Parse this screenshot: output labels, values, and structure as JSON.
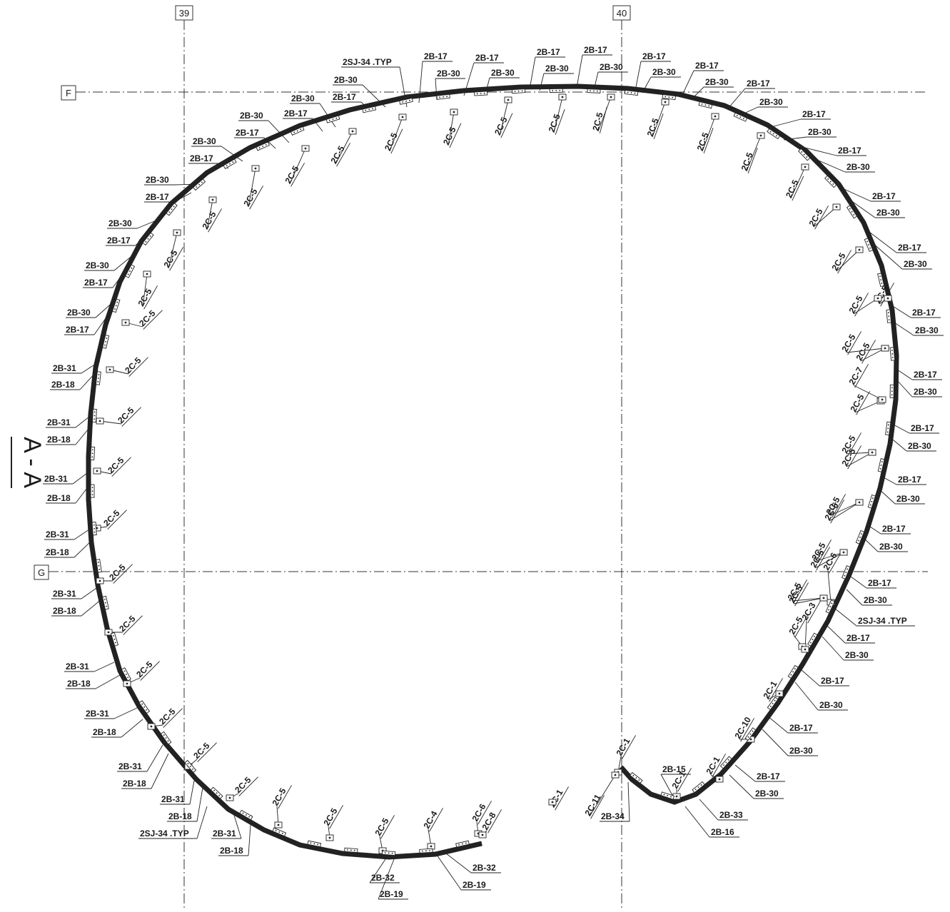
{
  "section_title": "A - A",
  "grid_labels": {
    "col_39": "39",
    "col_40": "40",
    "row_F": "F",
    "row_G": "G"
  },
  "labels": {
    "top": [
      "2SJ-34 .TYP",
      "2B-17",
      "2B-30",
      "2B-17",
      "2B-30",
      "2B-17",
      "2B-30",
      "2B-17",
      "2B-30",
      "2B-17",
      "2B-30",
      "2B-17",
      "2B-30",
      "2B-17",
      "2B-30"
    ],
    "left": [
      "2B-30",
      "2B-17",
      "2B-30",
      "2B-17",
      "2B-30",
      "2B-17",
      "2B-30",
      "2B-17",
      "2B-30",
      "2B-17",
      "2B-30",
      "2B-17",
      "2B-30",
      "2B-17",
      "2B-30",
      "2B-17",
      "2B-31",
      "2B-18",
      "2B-31",
      "2B-18",
      "2B-31",
      "2B-18",
      "2B-31",
      "2B-18",
      "2B-31",
      "2B-18",
      "2B-31",
      "2B-18",
      "2B-31",
      "2B-18",
      "2SJ-34 .TYP"
    ],
    "bottom": [
      "2B-31",
      "2B-18",
      "2B-31",
      "2B-18",
      "2B-31",
      "2B-18",
      "2B-32",
      "2B-19",
      "2B-32",
      "2B-19"
    ],
    "right": [
      "2B-17",
      "2B-30",
      "2B-17",
      "2B-30",
      "2B-17",
      "2B-30",
      "2B-17",
      "2B-30",
      "2B-17",
      "2B-30",
      "2B-17",
      "2B-30",
      "2B-17",
      "2B-30",
      "2B-17",
      "2B-30",
      "2B-17",
      "2B-30",
      "2B-17",
      "2B-30",
      "2SJ-34 .TYP",
      "2B-17",
      "2B-30",
      "2B-17",
      "2B-30",
      "2B-17",
      "2B-30",
      "2B-17",
      "2B-30"
    ],
    "hook": [
      "2B-15",
      "2B-33",
      "2B-16",
      "2B-34"
    ],
    "connectors": [
      "2C-5",
      "2C-5",
      "2C-5",
      "2C-5",
      "2C-5",
      "2C-5",
      "2C-5",
      "2C-5",
      "2C-5",
      "2C-5",
      "2C-5",
      "2C-5",
      "2C-5",
      "2C-5",
      "2C-5",
      "2C-5",
      "2C-5",
      "2C-5",
      "2C-5",
      "2C-5",
      "2C-5",
      "2C-5",
      "2C-5",
      "2C-5",
      "2C-5",
      "2C-5",
      "2C-5",
      "2C-5",
      "2C-5",
      "2C-5",
      "2C-5",
      "2C-5",
      "2C-5",
      "2C-5",
      "2C-5",
      "2C-5",
      "2C-5",
      "2C-5",
      "2C-5",
      "2C-4",
      "2C-6",
      "2C-8",
      "2C-1",
      "2C-1",
      "2C-11",
      "2C-1",
      "2C-1",
      "2C-10",
      "2C-1",
      "2C-3",
      "2C-6",
      "2C-7",
      "2C-5",
      "2C-5",
      "2C-5",
      "2C-5",
      "2C-5",
      "2C-5"
    ]
  }
}
